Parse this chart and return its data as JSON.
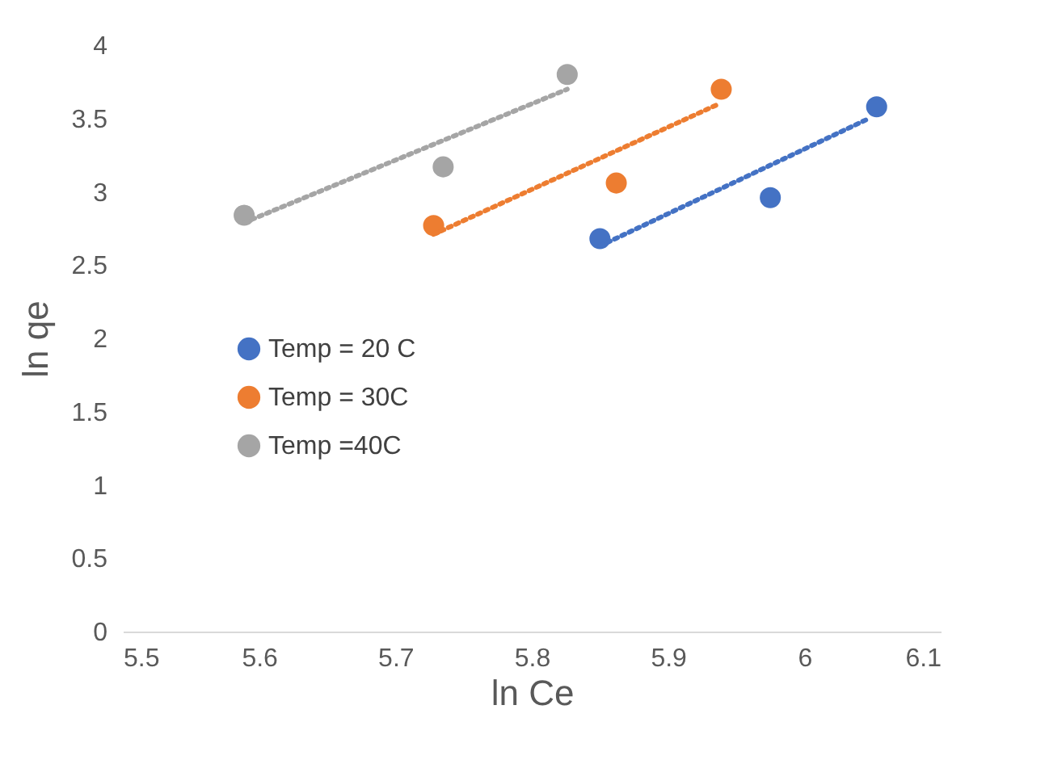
{
  "chart_data": {
    "type": "scatter",
    "xlabel": "ln Ce",
    "ylabel": "ln qe",
    "xlim": [
      5.5,
      6.1
    ],
    "ylim": [
      0,
      4
    ],
    "xticks": [
      5.5,
      5.6,
      5.7,
      5.8,
      5.9,
      6,
      6.1
    ],
    "yticks": [
      0,
      0.5,
      1,
      1.5,
      2,
      2.5,
      3,
      3.5,
      4
    ],
    "grid": false,
    "legend": "left",
    "series": [
      {
        "name": "Temp = 20 C",
        "color": "#4472c4",
        "marker": "circle",
        "x": [
          5.85,
          5.975,
          6.053
        ],
        "values": [
          2.68,
          2.96,
          3.58
        ]
      },
      {
        "name": "Temp = 30C",
        "color": "#ed7d31",
        "marker": "circle",
        "x": [
          5.728,
          5.862,
          5.939
        ],
        "values": [
          2.77,
          3.06,
          3.7
        ]
      },
      {
        "name": "Temp =40C",
        "color": "#a5a5a5",
        "marker": "circle",
        "x": [
          5.589,
          5.735,
          5.826
        ],
        "values": [
          2.84,
          3.17,
          3.8
        ]
      },
      {
        "color": "#4472c4",
        "type": "line",
        "marker": "none",
        "line_style": "dotted",
        "x": [
          5.85,
          6.045
        ],
        "values": [
          2.63,
          3.49
        ]
      },
      {
        "color": "#ed7d31",
        "type": "line",
        "marker": "none",
        "line_style": "dotted",
        "x": [
          5.728,
          5.935
        ],
        "values": [
          2.71,
          3.59
        ]
      },
      {
        "color": "#a5a5a5",
        "type": "line",
        "marker": "none",
        "line_style": "dotted",
        "x": [
          5.589,
          5.826
        ],
        "values": [
          2.79,
          3.7
        ]
      }
    ]
  }
}
